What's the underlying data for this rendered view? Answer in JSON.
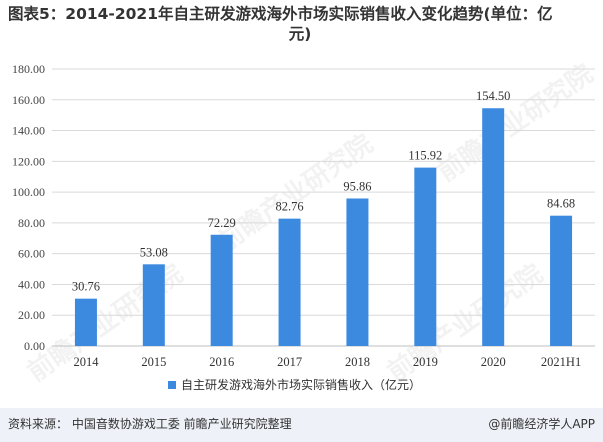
{
  "title_line1": "图表5：2014-2021年自主研发游戏海外市场实际销售收入变化趋势(单位：亿",
  "title_line2": "元)",
  "source": "资料来源：  中国音数协游戏工委  前瞻产业研究院整理",
  "credit": "@前瞻经济学人APP",
  "watermark": "前瞻产业研究院",
  "colors": {
    "bar": "#3b8ae0",
    "grid": "#d9d9d9",
    "footer_bg": "#eef1f7"
  },
  "chart_data": {
    "type": "bar",
    "categories": [
      "2014",
      "2015",
      "2016",
      "2017",
      "2018",
      "2019",
      "2020",
      "2021H1"
    ],
    "series": [
      {
        "name": "自主研发游戏海外市场实际销售收入（亿元）",
        "values": [
          30.76,
          53.08,
          72.29,
          82.76,
          95.86,
          115.92,
          154.5,
          84.68
        ]
      }
    ],
    "value_labels": [
      "30.76",
      "53.08",
      "72.29",
      "82.76",
      "95.86",
      "115.92",
      "154.50",
      "84.68"
    ],
    "ylim": [
      0,
      180
    ],
    "yticks": [
      "0.00",
      "20.00",
      "40.00",
      "60.00",
      "80.00",
      "100.00",
      "120.00",
      "140.00",
      "160.00",
      "180.00"
    ],
    "grid": true,
    "legend_position": "bottom"
  }
}
